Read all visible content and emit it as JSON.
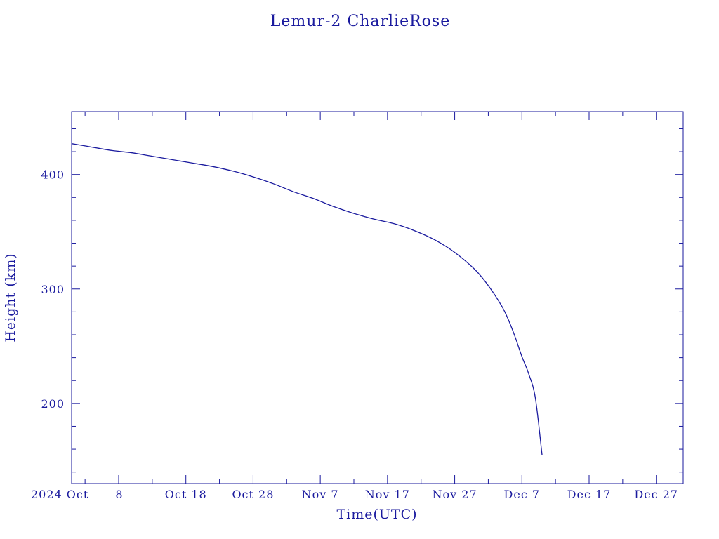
{
  "chart_data": {
    "type": "line",
    "title": "Lemur-2 CharlieRose",
    "xlabel": "Time(UTC)",
    "ylabel": "Height (km)",
    "xlim": [
      "2024-10-01",
      "2024-12-31"
    ],
    "ylim": [
      130,
      455
    ],
    "x_ticks": [
      {
        "date": "2024-10-01",
        "label": "2024 Oct"
      },
      {
        "date": "2024-10-08",
        "label": "8"
      },
      {
        "date": "2024-10-18",
        "label": "Oct 18"
      },
      {
        "date": "2024-10-28",
        "label": "Oct 28"
      },
      {
        "date": "2024-11-07",
        "label": "Nov  7"
      },
      {
        "date": "2024-11-17",
        "label": "Nov 17"
      },
      {
        "date": "2024-11-27",
        "label": "Nov 27"
      },
      {
        "date": "2024-12-07",
        "label": "Dec  7"
      },
      {
        "date": "2024-12-17",
        "label": "Dec 17"
      },
      {
        "date": "2024-12-27",
        "label": "Dec 27"
      }
    ],
    "y_ticks": [
      {
        "value": 200,
        "label": "200"
      },
      {
        "value": 300,
        "label": "300"
      },
      {
        "value": 400,
        "label": "400"
      }
    ],
    "color": "#1a1a9e",
    "grid": false,
    "series": [
      {
        "x": [
          "2024-10-01",
          "2024-10-03",
          "2024-10-04",
          "2024-10-07",
          "2024-10-10",
          "2024-10-13",
          "2024-10-16",
          "2024-10-19",
          "2024-10-22",
          "2024-10-25",
          "2024-10-28",
          "2024-10-31",
          "2024-11-03",
          "2024-11-06",
          "2024-11-09",
          "2024-11-12",
          "2024-11-15",
          "2024-11-18",
          "2024-11-21",
          "2024-11-24",
          "2024-11-27",
          "2024-11-30",
          "2024-12-02",
          "2024-12-04",
          "2024-12-05",
          "2024-12-06",
          "2024-12-07",
          "2024-12-08",
          "2024-12-09",
          "2024-12-10"
        ],
        "y": [
          427,
          425,
          424,
          421,
          419,
          416,
          413,
          410,
          407,
          403,
          398,
          392,
          385,
          379,
          372,
          366,
          361,
          357,
          351,
          343,
          332,
          317,
          303,
          285,
          273,
          258,
          241,
          226,
          205,
          155
        ]
      }
    ]
  }
}
